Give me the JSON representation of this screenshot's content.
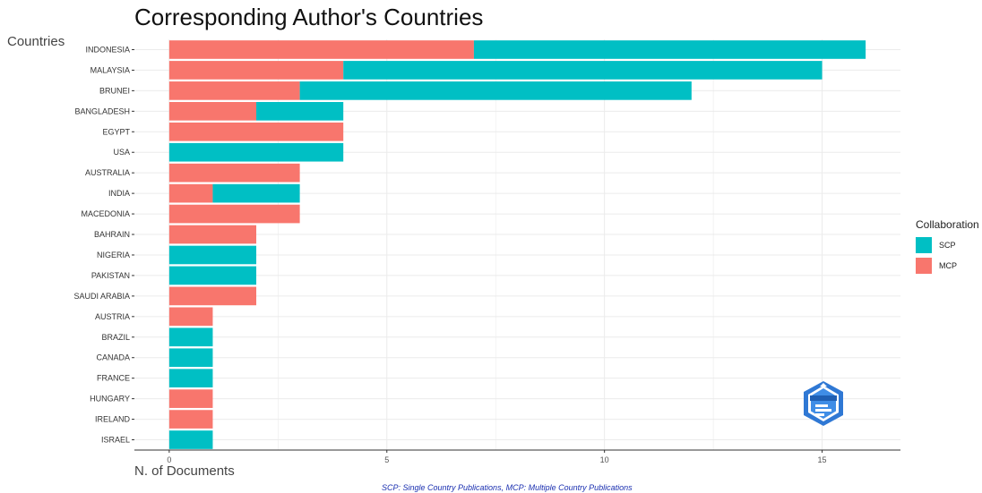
{
  "chart_data": {
    "type": "bar",
    "orientation": "horizontal",
    "stacked": true,
    "title": "Corresponding Author's Countries",
    "ylabel": "Countries",
    "xlabel": "N. of Documents",
    "caption": "SCP: Single Country Publications, MCP: Multiple Country Publications",
    "categories": [
      "INDONESIA",
      "MALAYSIA",
      "BRUNEI",
      "BANGLADESH",
      "EGYPT",
      "USA",
      "AUSTRALIA",
      "INDIA",
      "MACEDONIA",
      "BAHRAIN",
      "NIGERIA",
      "PAKISTAN",
      "SAUDI ARABIA",
      "AUSTRIA",
      "BRAZIL",
      "CANADA",
      "FRANCE",
      "HUNGARY",
      "IRELAND",
      "ISRAEL"
    ],
    "series": [
      {
        "name": "MCP",
        "color": "#F8766D",
        "values": [
          7,
          4,
          3,
          2,
          4,
          0,
          3,
          1,
          3,
          2,
          0,
          0,
          2,
          1,
          0,
          0,
          0,
          1,
          1,
          0
        ]
      },
      {
        "name": "SCP",
        "color": "#00BFC4",
        "values": [
          9,
          11,
          9,
          2,
          0,
          4,
          0,
          2,
          0,
          0,
          2,
          2,
          0,
          0,
          1,
          1,
          1,
          0,
          0,
          1
        ]
      }
    ],
    "xlim": [
      -0.8,
      16.8
    ],
    "xticks": [
      0,
      5,
      10,
      15
    ],
    "grid": true,
    "legend": {
      "title": "Collaboration",
      "position": "right",
      "items": [
        {
          "label": "SCP",
          "color": "#00BFC4"
        },
        {
          "label": "MCP",
          "color": "#F8766D"
        }
      ]
    }
  },
  "watermark": "BIBLIOMETRIX"
}
